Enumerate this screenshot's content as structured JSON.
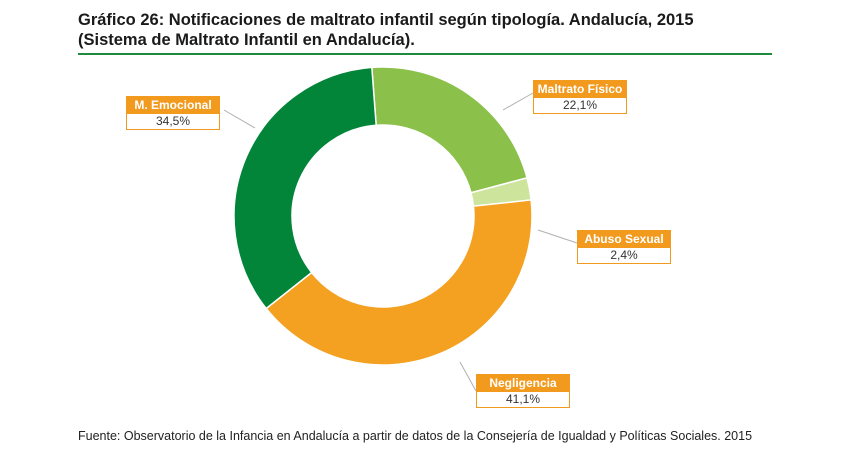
{
  "header": {
    "title_line1": "Gráfico 26: Notificaciones de maltrato infantil según tipología. Andalucía, 2015",
    "title_line2": "(Sistema de Maltrato Infantil en Andalucía)."
  },
  "footer": {
    "source": "Fuente: Observatorio de la Infancia en Andalucía a partir de datos de la Consejería de Igualdad y Políticas Sociales. 2015"
  },
  "chart_data": {
    "type": "pie",
    "variant": "donut",
    "title": "Gráfico 26: Notificaciones de maltrato infantil según tipología. Andalucía, 2015 (Sistema de Maltrato Infantil en Andalucía).",
    "unit": "%",
    "slices": [
      {
        "name": "Maltrato Físico",
        "value": 22.1,
        "label": "22,1%",
        "color": "#8bc04a"
      },
      {
        "name": "Abuso Sexual",
        "value": 2.4,
        "label": "2,4%",
        "color": "#cde49c"
      },
      {
        "name": "Negligencia",
        "value": 41.1,
        "label": "41,1%",
        "color": "#f4a020"
      },
      {
        "name": "M. Emocional",
        "value": 34.5,
        "label": "34,5%",
        "color": "#028439"
      }
    ],
    "legend": "callouts"
  }
}
